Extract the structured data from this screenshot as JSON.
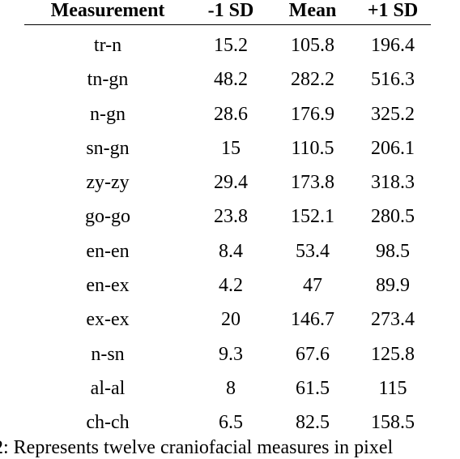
{
  "table": {
    "headers": [
      "Measurement",
      "-1 SD",
      "Mean",
      "+1 SD"
    ],
    "rows": [
      [
        "tr-n",
        "15.2",
        "105.8",
        "196.4"
      ],
      [
        "tn-gn",
        "48.2",
        "282.2",
        "516.3"
      ],
      [
        "n-gn",
        "28.6",
        "176.9",
        "325.2"
      ],
      [
        "sn-gn",
        "15",
        "110.5",
        "206.1"
      ],
      [
        "zy-zy",
        "29.4",
        "173.8",
        "318.3"
      ],
      [
        "go-go",
        "23.8",
        "152.1",
        "280.5"
      ],
      [
        "en-en",
        "8.4",
        "53.4",
        "98.5"
      ],
      [
        "en-ex",
        "4.2",
        "47",
        "89.9"
      ],
      [
        "ex-ex",
        "20",
        "146.7",
        "273.4"
      ],
      [
        "n-sn",
        "9.3",
        "67.6",
        "125.8"
      ],
      [
        "al-al",
        "8",
        "61.5",
        "115"
      ],
      [
        "ch-ch",
        "6.5",
        "82.5",
        "158.5"
      ]
    ]
  },
  "caption": "2: Represents twelve craniofacial measures in pixel"
}
